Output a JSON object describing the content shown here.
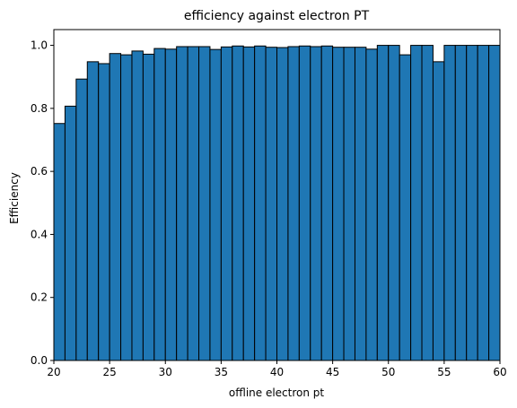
{
  "chart_data": {
    "type": "bar",
    "title": "efficiency against electron PT",
    "xlabel": "offline electron pt",
    "ylabel": "Efficiency",
    "xlim": [
      20,
      60
    ],
    "ylim": [
      0,
      1.05
    ],
    "bin_width": 1,
    "bins": [
      {
        "x0": 20,
        "x1": 21,
        "value": 0.752
      },
      {
        "x0": 21,
        "x1": 22,
        "value": 0.807
      },
      {
        "x0": 22,
        "x1": 23,
        "value": 0.893
      },
      {
        "x0": 23,
        "x1": 24,
        "value": 0.948
      },
      {
        "x0": 24,
        "x1": 25,
        "value": 0.942
      },
      {
        "x0": 25,
        "x1": 26,
        "value": 0.974
      },
      {
        "x0": 26,
        "x1": 27,
        "value": 0.97
      },
      {
        "x0": 27,
        "x1": 28,
        "value": 0.982
      },
      {
        "x0": 28,
        "x1": 29,
        "value": 0.972
      },
      {
        "x0": 29,
        "x1": 30,
        "value": 0.99
      },
      {
        "x0": 30,
        "x1": 31,
        "value": 0.988
      },
      {
        "x0": 31,
        "x1": 32,
        "value": 0.996
      },
      {
        "x0": 32,
        "x1": 33,
        "value": 0.996
      },
      {
        "x0": 33,
        "x1": 34,
        "value": 0.996
      },
      {
        "x0": 34,
        "x1": 35,
        "value": 0.987
      },
      {
        "x0": 35,
        "x1": 36,
        "value": 0.995
      },
      {
        "x0": 36,
        "x1": 37,
        "value": 0.998
      },
      {
        "x0": 37,
        "x1": 38,
        "value": 0.995
      },
      {
        "x0": 38,
        "x1": 39,
        "value": 0.998
      },
      {
        "x0": 39,
        "x1": 40,
        "value": 0.994
      },
      {
        "x0": 40,
        "x1": 41,
        "value": 0.993
      },
      {
        "x0": 41,
        "x1": 42,
        "value": 0.996
      },
      {
        "x0": 42,
        "x1": 43,
        "value": 0.998
      },
      {
        "x0": 43,
        "x1": 44,
        "value": 0.996
      },
      {
        "x0": 44,
        "x1": 45,
        "value": 0.998
      },
      {
        "x0": 45,
        "x1": 46,
        "value": 0.994
      },
      {
        "x0": 46,
        "x1": 47,
        "value": 0.994
      },
      {
        "x0": 47,
        "x1": 48,
        "value": 0.994
      },
      {
        "x0": 48,
        "x1": 49,
        "value": 0.988
      },
      {
        "x0": 49,
        "x1": 50,
        "value": 1.0
      },
      {
        "x0": 50,
        "x1": 51,
        "value": 1.0
      },
      {
        "x0": 51,
        "x1": 52,
        "value": 0.97
      },
      {
        "x0": 52,
        "x1": 53,
        "value": 1.0
      },
      {
        "x0": 53,
        "x1": 54,
        "value": 1.0
      },
      {
        "x0": 54,
        "x1": 55,
        "value": 0.948
      },
      {
        "x0": 55,
        "x1": 56,
        "value": 1.0
      },
      {
        "x0": 56,
        "x1": 57,
        "value": 1.0
      },
      {
        "x0": 57,
        "x1": 58,
        "value": 1.0
      },
      {
        "x0": 58,
        "x1": 59,
        "value": 1.0
      },
      {
        "x0": 59,
        "x1": 60,
        "value": 1.0
      }
    ],
    "x_ticks": [
      20,
      25,
      30,
      35,
      40,
      45,
      50,
      55,
      60
    ],
    "x_tick_labels": [
      "20",
      "25",
      "30",
      "35",
      "40",
      "45",
      "50",
      "55",
      "60"
    ],
    "y_ticks": [
      0.0,
      0.2,
      0.4,
      0.6,
      0.8,
      1.0
    ],
    "y_tick_labels": [
      "0.0",
      "0.2",
      "0.4",
      "0.6",
      "0.8",
      "1.0"
    ],
    "grid": false,
    "colors": {
      "bar_fill": "#1f77b4",
      "bar_edge": "#000000"
    }
  }
}
